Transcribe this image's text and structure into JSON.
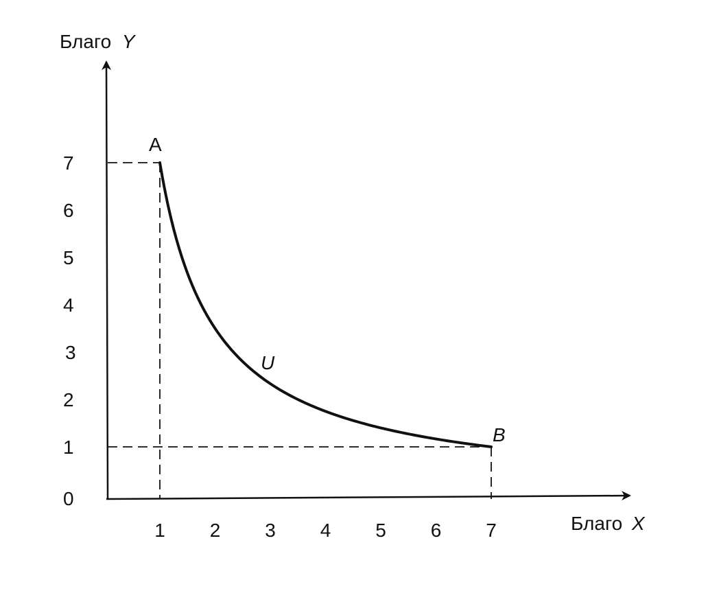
{
  "chart_data": {
    "type": "line",
    "title": "",
    "xlabel": {
      "prefix": "Благо",
      "variable": "X"
    },
    "ylabel": {
      "prefix": "Благо",
      "variable": "Y"
    },
    "xlim": [
      0,
      7
    ],
    "ylim": [
      0,
      7
    ],
    "x_ticks": [
      "1",
      "2",
      "3",
      "4",
      "5",
      "6",
      "7"
    ],
    "y_ticks": [
      "0",
      "1",
      "2",
      "3",
      "4",
      "5",
      "6",
      "7"
    ],
    "grid": false,
    "legend": "none",
    "series": [
      {
        "curve_label": "U",
        "x": [
          1,
          1.25,
          1.5,
          2,
          2.5,
          3,
          3.5,
          4,
          4.5,
          5,
          5.5,
          6,
          6.5,
          7
        ],
        "y": [
          7,
          5.6,
          4.67,
          3.5,
          2.8,
          2.33,
          2.0,
          1.75,
          1.56,
          1.4,
          1.27,
          1.17,
          1.08,
          1
        ]
      }
    ],
    "points": [
      {
        "label": "A",
        "x": 1,
        "y": 7
      },
      {
        "label": "B",
        "x": 7,
        "y": 1
      }
    ],
    "colors": {
      "ink": "#111111",
      "background": "#ffffff"
    }
  }
}
